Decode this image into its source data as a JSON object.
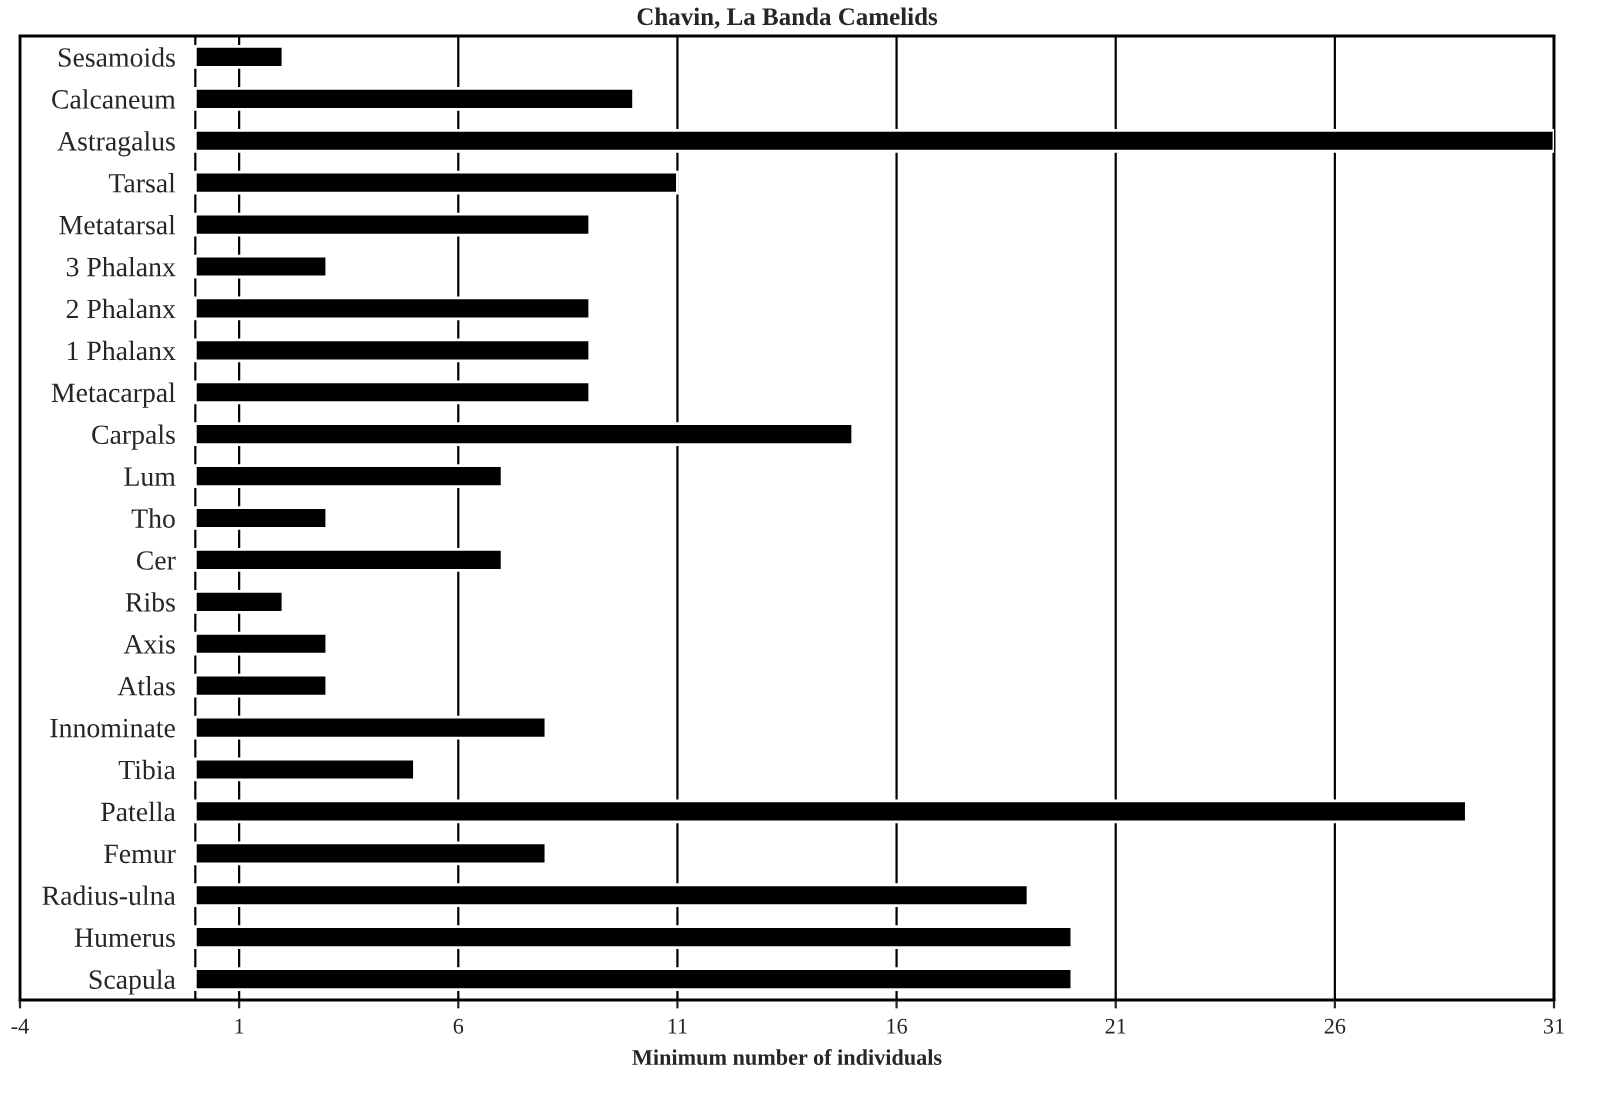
{
  "chart_data": {
    "type": "bar",
    "orientation": "horizontal",
    "title": "Chavin, La Banda Camelids",
    "xlabel": "Minimum number of individuals",
    "categories": [
      "Sesamoids",
      "Calcaneum",
      "Astragalus",
      "Tarsal",
      "Metatarsal",
      "3 Phalanx",
      "2 Phalanx",
      "1 Phalanx",
      "Metacarpal",
      "Carpals",
      "Lum",
      "Tho",
      "Cer",
      "Ribs",
      "Axis",
      "Atlas",
      "Innominate",
      "Tibia",
      "Patella",
      "Femur",
      "Radius-ulna",
      "Humerus",
      "Scapula"
    ],
    "values": [
      2,
      10,
      31,
      11,
      9,
      3,
      9,
      9,
      9,
      15,
      7,
      3,
      7,
      2,
      3,
      3,
      8,
      5,
      29,
      8,
      19,
      20,
      20
    ],
    "color": "#000000",
    "xlim": [
      -4,
      31
    ],
    "xticks": [
      -4,
      1,
      6,
      11,
      16,
      21,
      26,
      31
    ],
    "grid": "x"
  }
}
